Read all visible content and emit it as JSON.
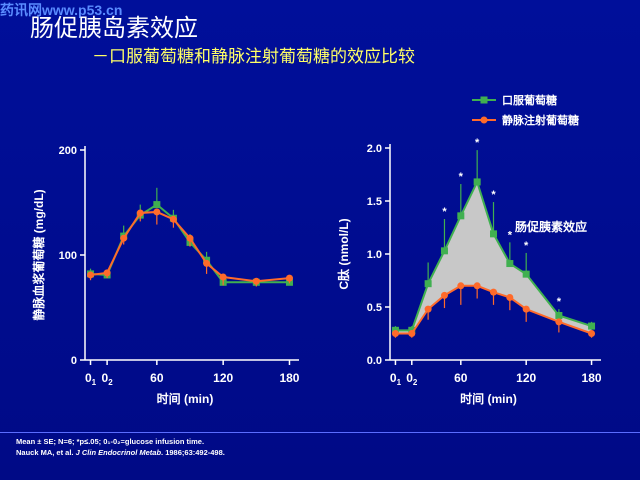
{
  "header": {
    "watermark": "药讯网www.p53.cn",
    "title": "肠促胰岛素效应",
    "subtitle": "－口服葡萄糖和静脉注射葡萄糖的效应比较"
  },
  "footer": {
    "line1": "Mean ± SE; N=6; *p≤.05; 0₁-0₂=glucose infusion time.",
    "line2_prefix": "Nauck MA, et al. ",
    "line2_journal": "J Clin Endocrinol Metab",
    "line2_suffix": ". 1986;63:492-498."
  },
  "colors": {
    "oral": "#40b050",
    "iv": "#ff6a2a",
    "axis": "#ffffff",
    "fill": "#c8c8c8"
  },
  "chart_data": [
    {
      "type": "line",
      "title": "",
      "xlabel": "时间 (min)",
      "ylabel": "静脉血浆葡萄糖 (mg/dL)",
      "xlim": [
        -5,
        185
      ],
      "ylim": [
        0,
        200
      ],
      "x_ticks": [
        {
          "v": 0,
          "label": "0",
          "sub": "1"
        },
        {
          "v": 15,
          "label": "0",
          "sub": "2"
        },
        {
          "v": 60,
          "label": "60",
          "sub": ""
        },
        {
          "v": 120,
          "label": "120",
          "sub": ""
        },
        {
          "v": 180,
          "label": "180",
          "sub": ""
        }
      ],
      "y_ticks": [
        0,
        100,
        200
      ],
      "x": [
        0,
        15,
        30,
        45,
        60,
        75,
        90,
        105,
        120,
        150,
        180
      ],
      "series": [
        {
          "name": "口服葡萄糖",
          "key": "oral",
          "values": [
            82,
            81,
            118,
            138,
            148,
            135,
            112,
            95,
            74,
            74,
            74
          ],
          "err": [
            5,
            5,
            10,
            10,
            16,
            8,
            8,
            8,
            5,
            4,
            4
          ]
        },
        {
          "name": "静脉注射葡萄糖",
          "key": "iv",
          "values": [
            81,
            83,
            116,
            140,
            141,
            134,
            116,
            92,
            79,
            75,
            78
          ],
          "err": [
            5,
            5,
            6,
            8,
            12,
            8,
            8,
            10,
            8,
            5,
            5
          ]
        }
      ]
    },
    {
      "type": "line",
      "title": "",
      "xlabel": "时间 (min)",
      "ylabel": "C肽 (nmol/L)",
      "xlim": [
        -5,
        185
      ],
      "ylim": [
        0,
        2.0
      ],
      "x_ticks": [
        {
          "v": 0,
          "label": "0",
          "sub": "1"
        },
        {
          "v": 15,
          "label": "0",
          "sub": "2"
        },
        {
          "v": 60,
          "label": "60",
          "sub": ""
        },
        {
          "v": 120,
          "label": "120",
          "sub": ""
        },
        {
          "v": 180,
          "label": "180",
          "sub": ""
        }
      ],
      "y_ticks": [
        "0.0",
        "0.5",
        "1.0",
        "1.5",
        "2.0"
      ],
      "x": [
        0,
        15,
        30,
        45,
        60,
        75,
        90,
        105,
        120,
        150,
        180
      ],
      "series": [
        {
          "name": "口服葡萄糖",
          "key": "oral",
          "values": [
            0.28,
            0.28,
            0.72,
            1.03,
            1.36,
            1.68,
            1.19,
            0.91,
            0.81,
            0.42,
            0.32
          ],
          "err": [
            0.04,
            0.04,
            0.2,
            0.3,
            0.3,
            0.3,
            0.3,
            0.2,
            0.2,
            0.06,
            0.04
          ]
        },
        {
          "name": "静脉注射葡萄糖",
          "key": "iv",
          "values": [
            0.25,
            0.25,
            0.48,
            0.61,
            0.7,
            0.7,
            0.64,
            0.59,
            0.48,
            0.36,
            0.25
          ],
          "err": [
            0.04,
            0.04,
            0.1,
            0.12,
            0.18,
            0.12,
            0.12,
            0.12,
            0.12,
            0.1,
            0.04
          ]
        }
      ],
      "significance_marker": "*",
      "significant_x": [
        45,
        60,
        75,
        90,
        105,
        120,
        150
      ],
      "annotation": "肠促胰素效应",
      "legend_position": "top-right"
    }
  ]
}
